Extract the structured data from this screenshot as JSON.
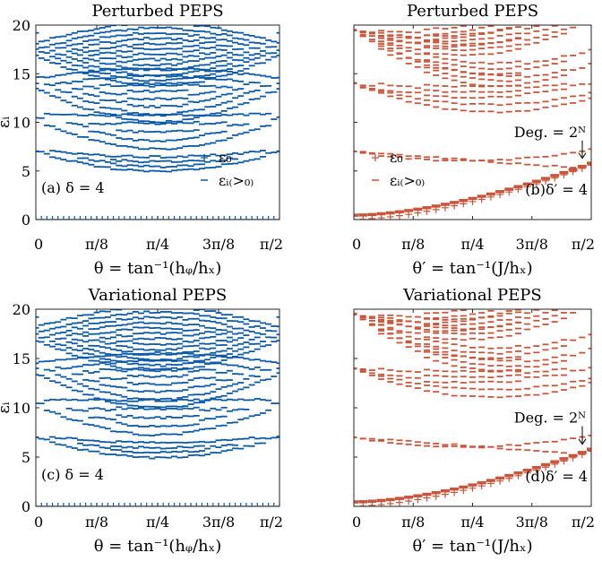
{
  "colors": {
    "blue": "#0b5aa8",
    "red": "#c9553a",
    "axis": "#262626"
  },
  "chart_data": [
    {
      "type": "scatter",
      "title": "Perturbed PEPS",
      "series_color": "blue",
      "ylabel": "εᵢ",
      "xlabel": "θ = tan⁻¹(hᵩ/hₓ)",
      "x_ticks": [
        "0",
        "π/8",
        "π/4",
        "3π/8",
        "π/2"
      ],
      "y_ticks": [
        "0",
        "5",
        "10",
        "15",
        "20"
      ],
      "xlim": [
        0,
        1.5708
      ],
      "ylim": [
        0,
        20
      ],
      "panel_label": "(a) δ = 4",
      "legend": [
        "ε₀",
        "εᵢ₍>₀₎"
      ],
      "legend_position": "bottom-right",
      "variant": "transverse-field",
      "ground_state": "ε₀ = 0 for all θ",
      "bands": [
        {
          "center": 7.0,
          "edge_value": 7.0
        },
        {
          "center": 10.0
        },
        {
          "center": 14.0,
          "edge_value": 14.0
        },
        {
          "center": 18.0,
          "edge_value": 19.0
        }
      ]
    },
    {
      "type": "scatter",
      "title": "Perturbed PEPS",
      "series_color": "red",
      "xlabel": "θ′ = tan⁻¹(J/hₓ)",
      "x_ticks": [
        "0",
        "π/8",
        "π/4",
        "3π/8",
        "π/2"
      ],
      "xlim": [
        0,
        1.5708
      ],
      "ylim": [
        0,
        20
      ],
      "panel_label": "(b)δ′ = 4",
      "legend": [
        "ε₀",
        "εᵢ₍>₀₎"
      ],
      "legend_position": "bottom-left",
      "annotation": "Deg. = 2ᴺ",
      "variant": "ising-coupling",
      "ground_state": "ε₀ rises from 0 to about 5.5 near π/2"
    },
    {
      "type": "scatter",
      "title": "Variational PEPS",
      "series_color": "blue",
      "ylabel": "εᵢ",
      "xlabel": "θ = tan⁻¹(hᵩ/hₓ)",
      "x_ticks": [
        "0",
        "π/8",
        "π/4",
        "3π/8",
        "π/2"
      ],
      "y_ticks": [
        "0",
        "5",
        "10",
        "15",
        "20"
      ],
      "xlim": [
        0,
        1.5708
      ],
      "ylim": [
        0,
        20
      ],
      "panel_label": "(c) δ = 4",
      "variant": "transverse-field",
      "ground_state": "ε₀ = 0 for all θ"
    },
    {
      "type": "scatter",
      "title": "Variational PEPS",
      "series_color": "red",
      "xlabel": "θ′ = tan⁻¹(J/hₓ)",
      "x_ticks": [
        "0",
        "π/8",
        "π/4",
        "3π/8",
        "π/2"
      ],
      "xlim": [
        0,
        1.5708
      ],
      "ylim": [
        0,
        20
      ],
      "panel_label": "(d)δ′ = 4",
      "annotation": "Deg. = 2ᴺ",
      "variant": "ising-coupling",
      "ground_state": "ε₀ rises from 0 to about 5.5 near π/2"
    }
  ]
}
